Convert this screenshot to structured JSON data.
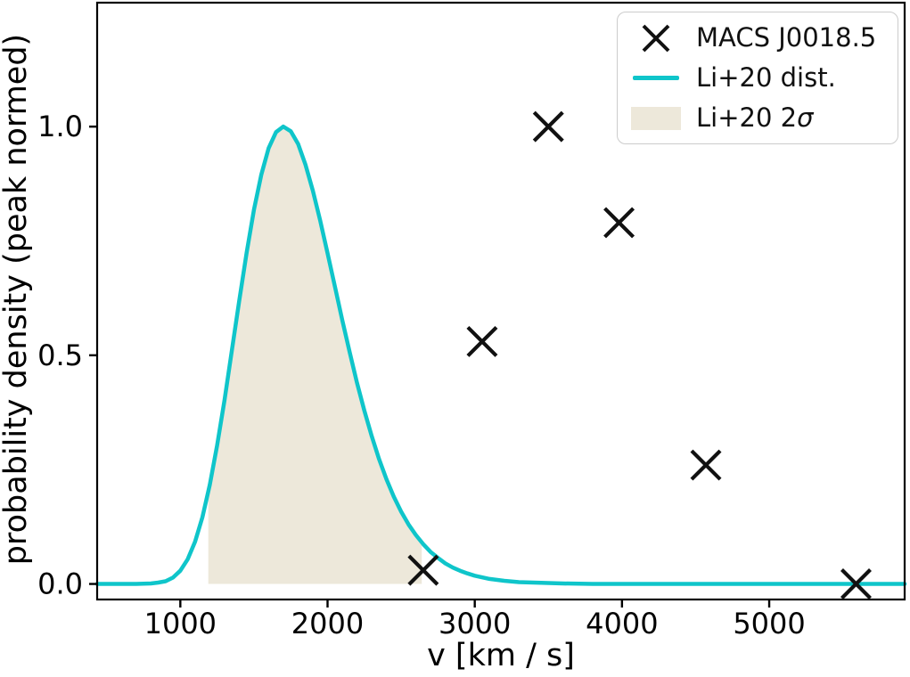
{
  "figure": {
    "xlabel": "v [km / s]",
    "ylabel": "probability density (peak normed)"
  },
  "legend": {
    "position": "upper right",
    "items": [
      {
        "swatch": "x-marker",
        "label": "MACS J0018.5"
      },
      {
        "swatch": "line",
        "label": "Li+20 dist."
      },
      {
        "swatch": "patch",
        "label_prefix": "Li+20 2",
        "label_sigma": "σ"
      }
    ]
  },
  "colors": {
    "curve": "#0fc5ca",
    "fill": "#ede8da",
    "marker": "#111111",
    "axis": "#000000",
    "tick_label": "#000000",
    "legend_border": "#cccccc",
    "background": "#ffffff"
  },
  "chart_data": {
    "type": "line",
    "title": "",
    "xlabel": "v [km / s]",
    "ylabel": "probability density (peak normed)",
    "xlim": [
      435,
      5920
    ],
    "ylim": [
      -0.034,
      1.271
    ],
    "x_ticks": [
      1000,
      2000,
      3000,
      4000,
      5000
    ],
    "x_tick_labels": [
      "1000",
      "2000",
      "3000",
      "4000",
      "5000"
    ],
    "y_ticks": [
      0.0,
      0.5,
      1.0
    ],
    "y_tick_labels": [
      "0.0",
      "0.5",
      "1.0"
    ],
    "grid": false,
    "legend_position": "upper right",
    "series": [
      {
        "name": "MACS J0018.5",
        "type": "scatter",
        "marker": "x",
        "points": [
          [
            2650,
            0.03
          ],
          [
            3050,
            0.53
          ],
          [
            3500,
            1.0
          ],
          [
            3980,
            0.79
          ],
          [
            4570,
            0.26
          ],
          [
            5590,
            0.0
          ]
        ]
      },
      {
        "name": "Li+20 dist.",
        "type": "line",
        "model": "lognormal(mu=7.48, sigma=0.20), peak-normalized",
        "peak_x": 1700,
        "peak_y": 1.0,
        "points": [
          [
            435,
            0
          ],
          [
            700,
            0
          ],
          [
            800,
            0.001
          ],
          [
            850,
            0.003
          ],
          [
            900,
            0.006
          ],
          [
            950,
            0.014
          ],
          [
            1000,
            0.029
          ],
          [
            1050,
            0.054
          ],
          [
            1100,
            0.092
          ],
          [
            1150,
            0.146
          ],
          [
            1200,
            0.217
          ],
          [
            1250,
            0.303
          ],
          [
            1300,
            0.402
          ],
          [
            1350,
            0.51
          ],
          [
            1400,
            0.619
          ],
          [
            1450,
            0.724
          ],
          [
            1500,
            0.818
          ],
          [
            1550,
            0.895
          ],
          [
            1600,
            0.953
          ],
          [
            1650,
            0.988
          ],
          [
            1700,
            1.0
          ],
          [
            1750,
            0.99
          ],
          [
            1800,
            0.962
          ],
          [
            1850,
            0.917
          ],
          [
            1900,
            0.86
          ],
          [
            1950,
            0.795
          ],
          [
            2000,
            0.723
          ],
          [
            2050,
            0.65
          ],
          [
            2100,
            0.577
          ],
          [
            2150,
            0.507
          ],
          [
            2200,
            0.44
          ],
          [
            2250,
            0.379
          ],
          [
            2300,
            0.323
          ],
          [
            2350,
            0.273
          ],
          [
            2400,
            0.229
          ],
          [
            2450,
            0.191
          ],
          [
            2500,
            0.158
          ],
          [
            2550,
            0.13
          ],
          [
            2600,
            0.107
          ],
          [
            2650,
            0.087
          ],
          [
            2700,
            0.07
          ],
          [
            2750,
            0.057
          ],
          [
            2800,
            0.045
          ],
          [
            2850,
            0.036
          ],
          [
            2900,
            0.029
          ],
          [
            2950,
            0.023
          ],
          [
            3000,
            0.018
          ],
          [
            3100,
            0.011
          ],
          [
            3200,
            0.007
          ],
          [
            3300,
            0.004
          ],
          [
            3400,
            0.003
          ],
          [
            3500,
            0.002
          ],
          [
            3600,
            0.001
          ],
          [
            3800,
            0.0
          ],
          [
            4200,
            0.0
          ],
          [
            4700,
            0.0
          ],
          [
            5300,
            0.0
          ],
          [
            5920,
            0.0
          ]
        ]
      },
      {
        "name": "Li+20 2σ",
        "type": "fill_between_x",
        "x_range": [
          1190,
          2640
        ]
      }
    ]
  }
}
